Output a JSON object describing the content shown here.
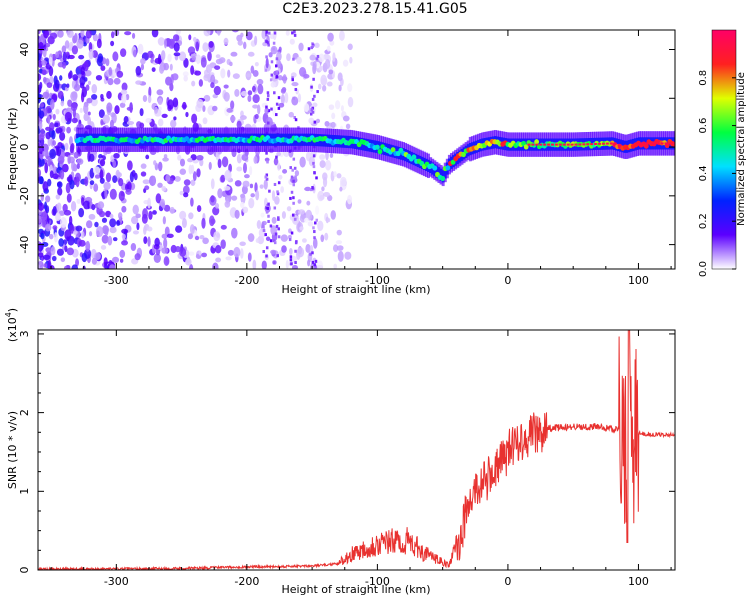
{
  "title": "C2E3.2023.278.15.41.G05",
  "chart_data": [
    {
      "type": "heatmap",
      "xlabel": "Height of straight line (km)",
      "ylabel": "Frequency (Hz)",
      "xlim": [
        -360,
        128
      ],
      "ylim": [
        -50,
        48
      ],
      "x_ticks": [
        -300,
        -200,
        -100,
        0,
        100
      ],
      "x_tick_labels": [
        "-300",
        "-200",
        "-100",
        "0",
        "100"
      ],
      "y_ticks": [
        -40,
        -20,
        0,
        20,
        40
      ],
      "y_tick_labels": [
        "-40",
        "-20",
        "0",
        "20",
        "40"
      ],
      "colorbar": {
        "label": "Normalized spectral amplitude",
        "range": [
          0,
          1
        ],
        "ticks": [
          0,
          0.2,
          0.4,
          0.6,
          0.8
        ],
        "tick_labels": [
          "0.0",
          "0.2",
          "0.4",
          "0.6",
          "0.8"
        ],
        "colors": [
          "#ffffff",
          "#5b00ff",
          "#0022ff",
          "#00e0ff",
          "#00ff40",
          "#e0ff00",
          "#ff2020",
          "#ff0066"
        ]
      },
      "ridge": {
        "x": [
          -360,
          -300,
          -250,
          -200,
          -150,
          -120,
          -100,
          -80,
          -60,
          -50,
          -45,
          -30,
          -20,
          -10,
          0,
          20,
          50,
          80,
          90,
          100,
          128
        ],
        "y": [
          3,
          3,
          3,
          3,
          3,
          2,
          0,
          -3,
          -8,
          -12,
          -7,
          -1,
          1,
          2,
          1,
          1,
          1,
          1.5,
          0,
          1.5,
          1.5
        ]
      }
    },
    {
      "type": "line",
      "xlabel": "Height of straight line (km)",
      "ylabel": "SNR (10 * v/v)",
      "y_multiplier": "(x10",
      "y_multiplier_exp": "4",
      "y_multiplier_close": ")",
      "xlim": [
        -360,
        128
      ],
      "ylim": [
        0,
        3.05
      ],
      "x_ticks": [
        -300,
        -200,
        -100,
        0,
        100
      ],
      "x_tick_labels": [
        "-300",
        "-200",
        "-100",
        "0",
        "100"
      ],
      "y_ticks": [
        0,
        1,
        2,
        3
      ],
      "y_tick_labels": [
        "0",
        "1",
        "2",
        "3"
      ],
      "color": "#e8312f",
      "envelope": {
        "x": [
          -360,
          -250,
          -200,
          -150,
          -130,
          -120,
          -105,
          -90,
          -75,
          -65,
          -45,
          -38,
          -32,
          -25,
          -15,
          -5,
          5,
          20,
          30,
          50,
          70,
          85,
          90,
          93,
          96,
          98,
          110,
          128
        ],
        "y": [
          0.01,
          0.02,
          0.04,
          0.05,
          0.08,
          0.18,
          0.28,
          0.32,
          0.33,
          0.2,
          0.05,
          0.35,
          0.75,
          1.05,
          1.2,
          1.4,
          1.65,
          1.76,
          1.8,
          1.82,
          1.82,
          1.78,
          1.7,
          1.65,
          1.72,
          1.74,
          1.72,
          1.72
        ]
      }
    }
  ]
}
